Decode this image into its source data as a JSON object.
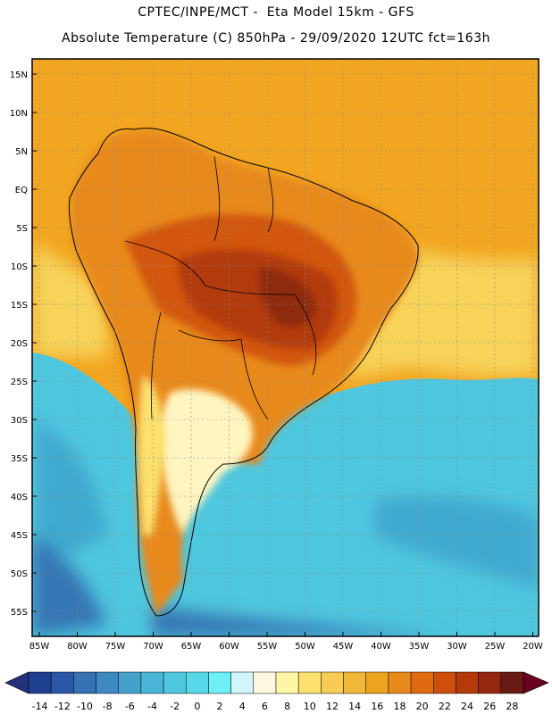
{
  "header": {
    "line1": "CPTEC/INPE/MCT -  Eta Model 15km - GFS",
    "line2": "Absolute Temperature (C) 850hPa - 29/09/2020 12UTC fct=163h"
  },
  "axes": {
    "lat_labels": [
      "15N",
      "10N",
      "5N",
      "EQ",
      "5S",
      "10S",
      "15S",
      "20S",
      "25S",
      "30S",
      "35S",
      "40S",
      "45S",
      "50S",
      "55S"
    ],
    "lon_labels": [
      "85W",
      "80W",
      "75W",
      "70W",
      "65W",
      "60W",
      "55W",
      "50W",
      "45W",
      "40W",
      "35W",
      "30W",
      "25W",
      "20W"
    ]
  },
  "colorbar": {
    "labels": [
      "-14",
      "-12",
      "-10",
      "-8",
      "-6",
      "-4",
      "-2",
      "0",
      "2",
      "4",
      "6",
      "8",
      "10",
      "12",
      "14",
      "16",
      "18",
      "20",
      "22",
      "24",
      "26",
      "28"
    ],
    "colors": [
      "#1f3f8f",
      "#2a57a6",
      "#3572b3",
      "#3f89c2",
      "#45a0cc",
      "#4ab5d6",
      "#4fc7df",
      "#57d9ea",
      "#6ef0f6",
      "#d0f6fb",
      "#fff8e0",
      "#fff5a6",
      "#fce16e",
      "#f6cc55",
      "#f0b838",
      "#eca31e",
      "#e8891b",
      "#e06a10",
      "#cc500c",
      "#b43a0a",
      "#932710",
      "#6a1a14"
    ],
    "left_arrow_color": "#23307a",
    "right_arrow_color": "#6a0020"
  },
  "field_colors": {
    "ocean_north": "#f2a520",
    "ocean_mid": "#f7d35a",
    "ocean_cold": "#4fc7df",
    "ocean_cold_dark": "#3fa9cf",
    "ocean_very_cold": "#3576b4",
    "land_warm": "#e8891b",
    "land_hot": "#d2560f",
    "land_hotter": "#b23a0a",
    "land_hottest": "#8e2a10",
    "land_pale": "#fff5c0",
    "land_yellow": "#fce16e"
  }
}
